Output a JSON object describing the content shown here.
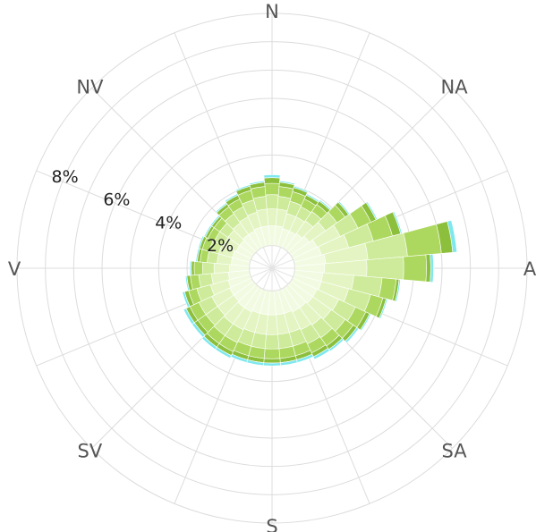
{
  "chart_data": {
    "type": "windrose",
    "direction_labels": [
      "N",
      "NA",
      "A",
      "SA",
      "S",
      "SV",
      "V",
      "NV"
    ],
    "ring_labels": [
      "2%",
      "4%",
      "6%",
      "8%"
    ],
    "ring_values": [
      2,
      4,
      6,
      8
    ],
    "r_max": 9,
    "sectors": 36,
    "calm_radius_percent": 0.8,
    "series": [
      {
        "color": "#f2fbe2",
        "values": [
          0.7,
          0.7,
          0.65,
          0.65,
          0.7,
          0.8,
          0.95,
          1.0,
          1.1,
          1.05,
          1.0,
          1.0,
          0.95,
          0.95,
          0.9,
          0.9,
          0.85,
          0.85,
          0.85,
          0.85,
          0.85,
          0.9,
          0.9,
          0.85,
          0.85,
          0.8,
          0.75,
          0.7,
          0.65,
          0.65,
          0.6,
          0.6,
          0.65,
          0.65,
          0.7,
          0.7
        ]
      },
      {
        "color": "#e4f5c3",
        "values": [
          0.6,
          0.6,
          0.55,
          0.55,
          0.55,
          0.7,
          0.9,
          1.0,
          1.5,
          1.5,
          1.1,
          1.0,
          0.85,
          0.8,
          0.75,
          0.7,
          0.7,
          0.7,
          0.7,
          0.7,
          0.7,
          0.7,
          0.7,
          0.7,
          0.7,
          0.65,
          0.6,
          0.55,
          0.5,
          0.5,
          0.5,
          0.5,
          0.5,
          0.55,
          0.55,
          0.6
        ]
      },
      {
        "color": "#cdeb9a",
        "values": [
          0.5,
          0.45,
          0.45,
          0.4,
          0.4,
          0.5,
          0.7,
          0.9,
          1.4,
          1.3,
          1.0,
          0.8,
          0.65,
          0.6,
          0.55,
          0.55,
          0.5,
          0.5,
          0.5,
          0.5,
          0.5,
          0.5,
          0.5,
          0.5,
          0.5,
          0.5,
          0.45,
          0.4,
          0.35,
          0.35,
          0.35,
          0.35,
          0.4,
          0.4,
          0.45,
          0.45
        ]
      },
      {
        "color": "#acd860",
        "values": [
          0.4,
          0.35,
          0.35,
          0.3,
          0.3,
          0.35,
          0.5,
          0.7,
          1.2,
          0.8,
          0.5,
          0.45,
          0.4,
          0.35,
          0.35,
          0.35,
          0.35,
          0.35,
          0.35,
          0.35,
          0.35,
          0.35,
          0.35,
          0.35,
          0.35,
          0.3,
          0.3,
          0.3,
          0.25,
          0.25,
          0.25,
          0.25,
          0.3,
          0.3,
          0.35,
          0.35
        ]
      },
      {
        "color": "#8cbf3b",
        "values": [
          0.2,
          0.15,
          0.15,
          0.15,
          0.15,
          0.15,
          0.2,
          0.3,
          0.4,
          0.15,
          0.1,
          0.12,
          0.15,
          0.15,
          0.15,
          0.15,
          0.15,
          0.15,
          0.15,
          0.15,
          0.15,
          0.15,
          0.15,
          0.15,
          0.15,
          0.15,
          0.12,
          0.1,
          0.1,
          0.1,
          0.1,
          0.1,
          0.12,
          0.15,
          0.15,
          0.15
        ]
      },
      {
        "color": "#7fe8ee",
        "values": [
          0.1,
          0.05,
          0.05,
          0.05,
          0.05,
          0.05,
          0.05,
          0.05,
          0.15,
          0.1,
          0.05,
          0.05,
          0.05,
          0.08,
          0.08,
          0.1,
          0.1,
          0.1,
          0.1,
          0.1,
          0.1,
          0.1,
          0.1,
          0.1,
          0.1,
          0.08,
          0.05,
          0.05,
          0.05,
          0.05,
          0.05,
          0.05,
          0.05,
          0.05,
          0.05,
          0.05
        ]
      }
    ]
  }
}
